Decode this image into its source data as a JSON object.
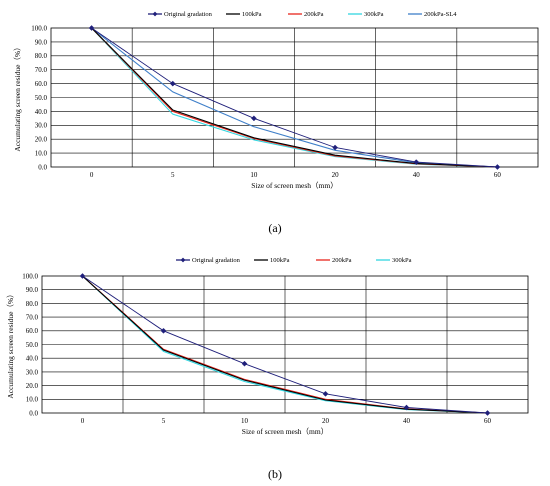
{
  "chart_data": [
    {
      "type": "line",
      "panel_label": "(a)",
      "xlabel": "Size of screen mesh（mm）",
      "ylabel": "Accumulating screen residue（%）",
      "categories": [
        "0",
        "5",
        "10",
        "20",
        "40",
        "60"
      ],
      "ylim": [
        0,
        100
      ],
      "yticks": [
        "0.0",
        "10.0",
        "20.0",
        "30.0",
        "40.0",
        "50.0",
        "60.0",
        "70.0",
        "80.0",
        "90.0",
        "100.0"
      ],
      "grid": true,
      "legend": "top",
      "series": [
        {
          "name": "Original gradation",
          "color": "#1f1f7a",
          "marker": "diamond",
          "values": [
            100,
            60,
            35,
            14,
            3.5,
            0
          ]
        },
        {
          "name": "100kPa",
          "color": "#000000",
          "values": [
            100,
            41,
            21,
            8.5,
            2.5,
            0
          ]
        },
        {
          "name": "200kPa",
          "color": "#e8261c",
          "values": [
            100,
            40,
            20.5,
            8,
            2.3,
            0
          ]
        },
        {
          "name": "300kPa",
          "color": "#33d6e0",
          "values": [
            100,
            38,
            19.5,
            7.5,
            2,
            0
          ]
        },
        {
          "name": "200kPa-SL4",
          "color": "#3f7fc9",
          "values": [
            100,
            54,
            29,
            12,
            3,
            0
          ]
        }
      ]
    },
    {
      "type": "line",
      "panel_label": "(b)",
      "xlabel": "Size of screen mesh（mm）",
      "ylabel": "Accumulating screen residue（%）",
      "categories": [
        "0",
        "5",
        "10",
        "20",
        "40",
        "60"
      ],
      "ylim": [
        0,
        100
      ],
      "yticks": [
        "0.0",
        "10.0",
        "20.0",
        "30.0",
        "40.0",
        "50.0",
        "60.0",
        "70.0",
        "80.0",
        "90.0",
        "100.0"
      ],
      "grid": true,
      "legend": "top",
      "series": [
        {
          "name": "Original gradation",
          "color": "#1f1f7a",
          "marker": "diamond",
          "values": [
            100,
            60,
            36,
            14,
            4,
            0
          ]
        },
        {
          "name": "100kPa",
          "color": "#000000",
          "values": [
            100,
            46,
            24,
            9.5,
            2.8,
            0
          ]
        },
        {
          "name": "200kPa",
          "color": "#e8261c",
          "values": [
            100,
            46.5,
            24.5,
            10,
            3,
            0
          ]
        },
        {
          "name": "300kPa",
          "color": "#33d6e0",
          "values": [
            100,
            45,
            23,
            9,
            2.5,
            0
          ]
        }
      ]
    }
  ]
}
